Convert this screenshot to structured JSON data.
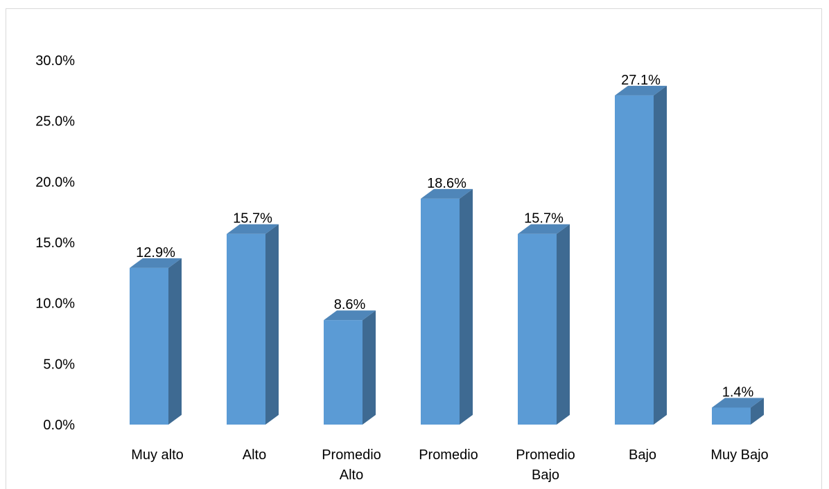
{
  "chart_data": {
    "type": "bar",
    "style": "3d-column",
    "categories": [
      [
        "Muy alto"
      ],
      [
        "Alto"
      ],
      [
        "Promedio",
        "Alto"
      ],
      [
        "Promedio"
      ],
      [
        "Promedio",
        "Bajo"
      ],
      [
        "Bajo"
      ],
      [
        "Muy Bajo"
      ]
    ],
    "values": [
      12.9,
      15.7,
      8.6,
      18.6,
      15.7,
      27.1,
      1.4
    ],
    "value_labels": [
      "12.9%",
      "15.7%",
      "8.6%",
      "18.6%",
      "15.7%",
      "27.1%",
      "1.4%"
    ],
    "y_ticks": [
      0,
      5,
      10,
      15,
      20,
      25,
      30
    ],
    "y_tick_labels": [
      "0.0%",
      "5.0%",
      "10.0%",
      "15.0%",
      "20.0%",
      "25.0%",
      "30.0%"
    ],
    "ylim": [
      0,
      30
    ],
    "grid": false,
    "legend": "none",
    "colors": {
      "front": "#5b9bd5",
      "side": "#3e6a92",
      "top": "#4f86b9",
      "frame": "#d9d9d9"
    }
  }
}
